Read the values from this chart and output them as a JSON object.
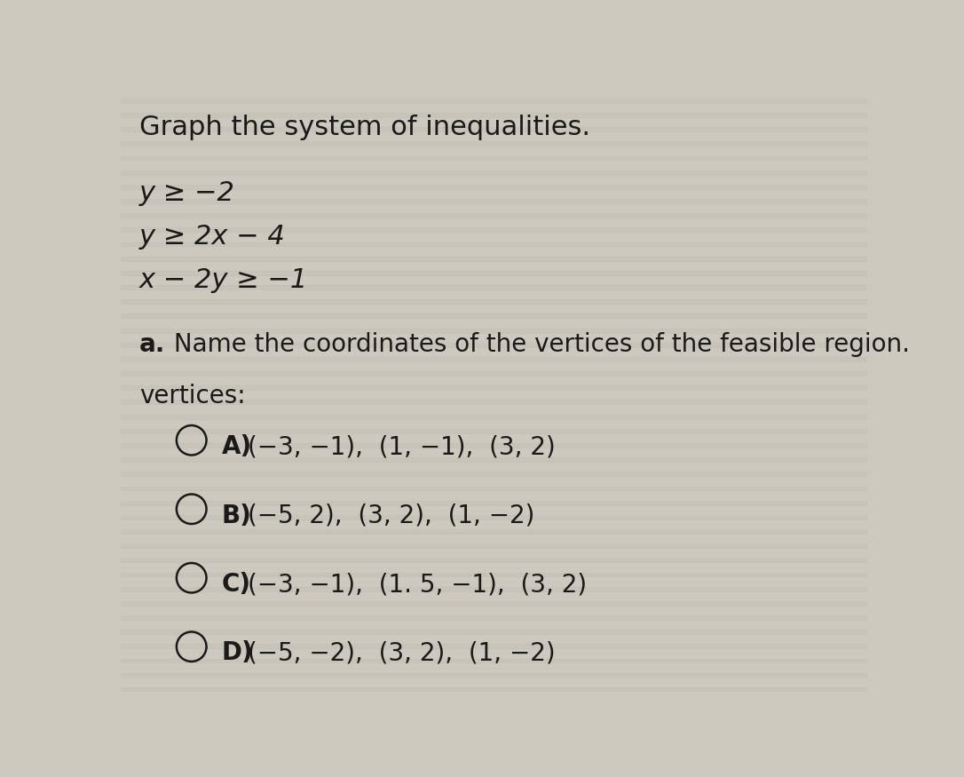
{
  "title": "Graph the system of inequalities.",
  "inequalities": [
    "y ≥ −2",
    "y ≥ 2x − 4",
    "x − 2y ≥ −1"
  ],
  "part_a_bold": "a.",
  "part_a_rest": " Name the coordinates of the vertices of the feasible region.",
  "vertices_label": "vertices:",
  "options": [
    {
      "letter": "A)",
      "text": "(−3, −1),  (1, −1),  (3, 2)"
    },
    {
      "letter": "B)",
      "text": "(−5, 2),  (3, 2),  (1, −2)"
    },
    {
      "letter": "C)",
      "text": "(−3, −1),  (1. 5, −1),  (3, 2)"
    },
    {
      "letter": "D)",
      "text": "(−5, −2),  (3, 2),  (1, −2)"
    }
  ],
  "bg_color": "#cdc9be",
  "stripe_color": "#bfbbb0",
  "text_color": "#1a1a1a",
  "title_fontsize": 22,
  "ineq_fontsize": 22,
  "part_a_fontsize": 20,
  "options_fontsize": 20,
  "circle_lw": 1.8
}
